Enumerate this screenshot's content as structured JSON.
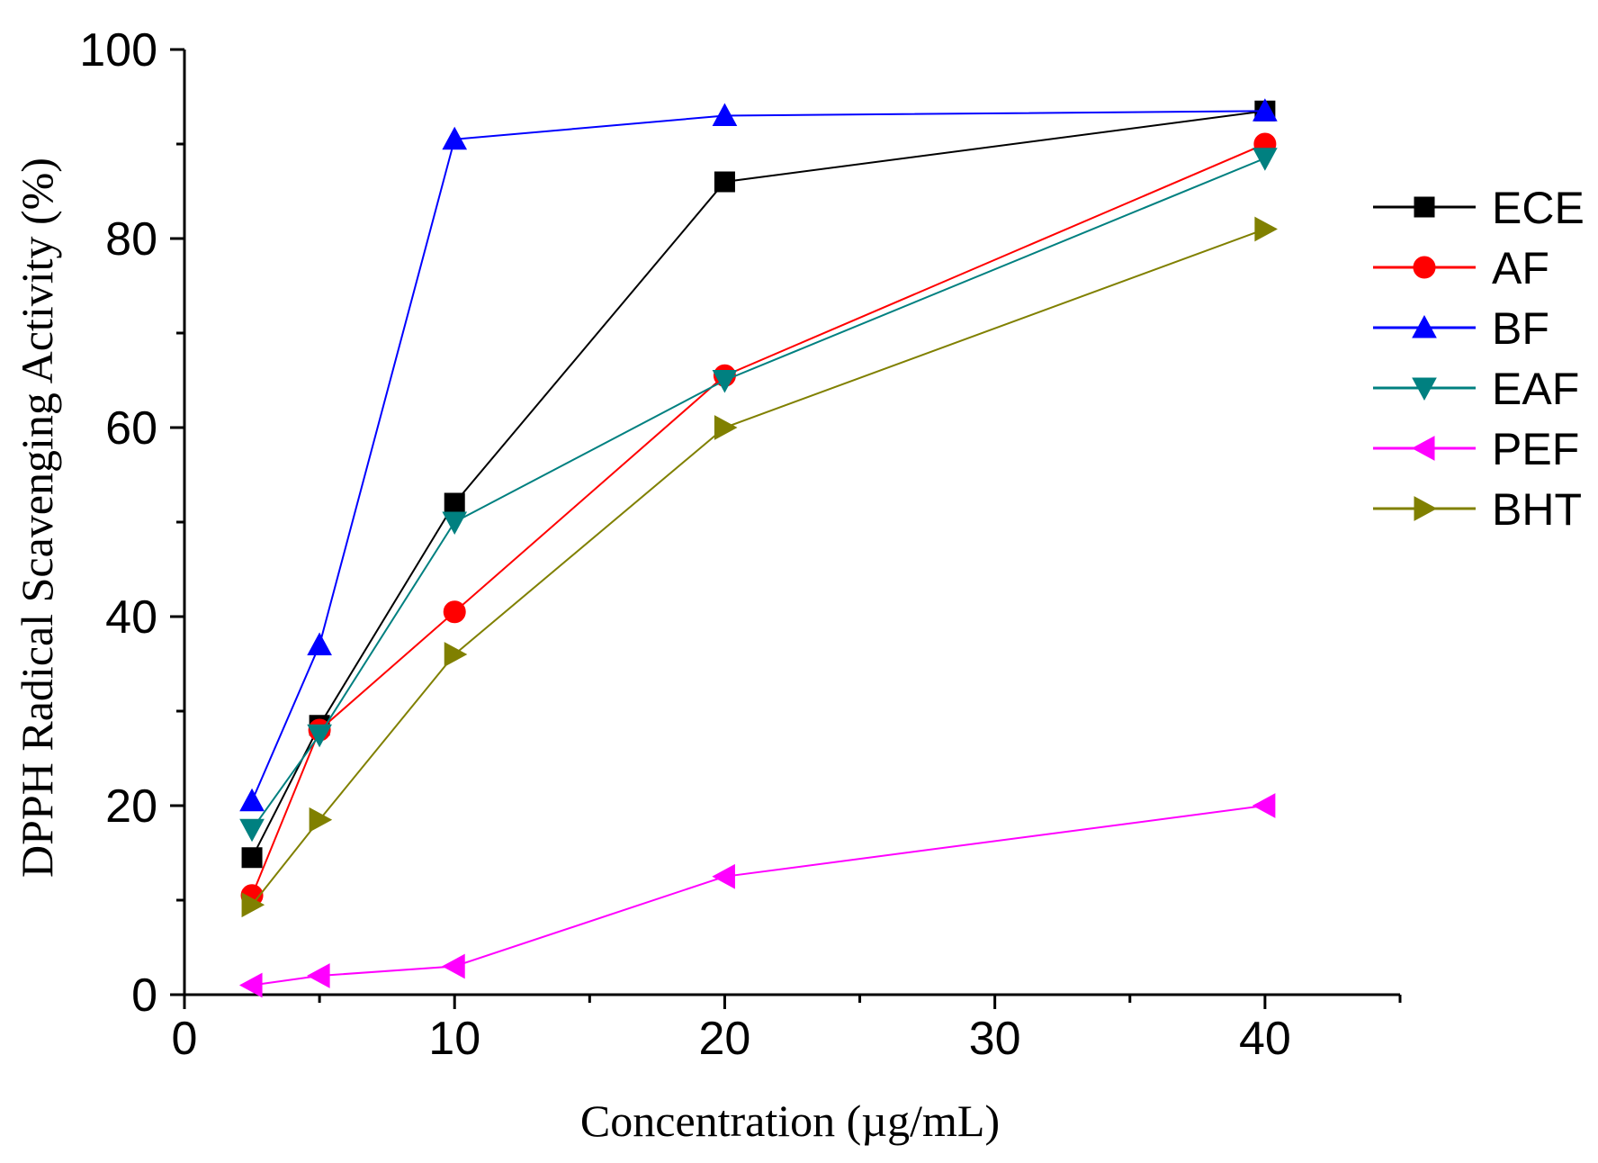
{
  "chart_data": {
    "type": "line",
    "xlabel": "Concentration (µg/mL)",
    "ylabel": "DPPH Radical Scavenging Activity (%)",
    "xlim": [
      0,
      45
    ],
    "ylim": [
      0,
      100
    ],
    "xticks": [
      0,
      10,
      20,
      30,
      40
    ],
    "xticks_minor": [
      5,
      15,
      25,
      35,
      45
    ],
    "yticks": [
      0,
      20,
      40,
      60,
      80,
      100
    ],
    "yticks_minor": [
      10,
      30,
      50,
      70,
      90
    ],
    "x": [
      2.5,
      5,
      10,
      20,
      40
    ],
    "legend_position": "right",
    "series": [
      {
        "name": "ECE",
        "color": "#000000",
        "marker": "square",
        "values": [
          14.5,
          28.5,
          52.0,
          86.0,
          93.5
        ]
      },
      {
        "name": "AF",
        "color": "#ff0000",
        "marker": "circle",
        "values": [
          10.5,
          28.0,
          40.5,
          65.5,
          90.0
        ]
      },
      {
        "name": "BF",
        "color": "#0000ff",
        "marker": "triangle-up",
        "values": [
          20.5,
          37.0,
          90.5,
          93.0,
          93.5
        ]
      },
      {
        "name": "EAF",
        "color": "#008080",
        "marker": "triangle-down",
        "values": [
          17.5,
          27.5,
          50.0,
          65.0,
          88.5
        ]
      },
      {
        "name": "PEF",
        "color": "#ff00ff",
        "marker": "triangle-left",
        "values": [
          1.0,
          2.0,
          3.0,
          12.5,
          20.0
        ]
      },
      {
        "name": "BHT",
        "color": "#808000",
        "marker": "triangle-right",
        "values": [
          9.5,
          18.5,
          36.0,
          60.0,
          81.0
        ]
      }
    ]
  }
}
